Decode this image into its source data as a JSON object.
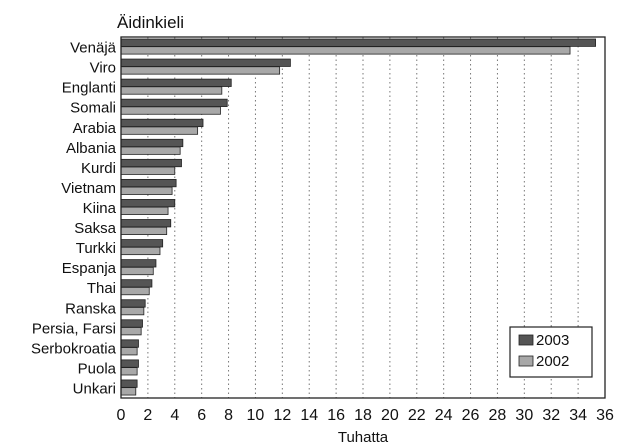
{
  "chart_data": {
    "type": "bar",
    "orientation": "horizontal",
    "title": "Äidinkieli",
    "xlabel": "Tuhatta",
    "ylabel": "",
    "xlim": [
      0,
      36
    ],
    "xticks": [
      "0",
      "2",
      "4",
      "6",
      "8",
      "10",
      "12",
      "14",
      "16",
      "18",
      "20",
      "22",
      "24",
      "26",
      "28",
      "30",
      "32",
      "34",
      "36"
    ],
    "grid": "vertical dotted",
    "legend_position": "bottom-right",
    "categories": [
      "Venäjä",
      "Viro",
      "Englanti",
      "Somali",
      "Arabia",
      "Albania",
      "Kurdi",
      "Vietnam",
      "Kiina",
      "Saksa",
      "Turkki",
      "Espanja",
      "Thai",
      "Ranska",
      "Persia, Farsi",
      "Serbokroatia",
      "Puola",
      "Unkari"
    ],
    "series": [
      {
        "name": "2003",
        "color": "#555555",
        "values": [
          35.3,
          12.6,
          8.2,
          7.9,
          6.1,
          4.6,
          4.5,
          4.1,
          4.0,
          3.7,
          3.1,
          2.6,
          2.3,
          1.8,
          1.6,
          1.3,
          1.3,
          1.2
        ]
      },
      {
        "name": "2002",
        "color": "#a8a8a8",
        "values": [
          33.4,
          11.8,
          7.5,
          7.4,
          5.7,
          4.4,
          4.0,
          3.8,
          3.5,
          3.4,
          2.9,
          2.4,
          2.1,
          1.7,
          1.5,
          1.2,
          1.2,
          1.1
        ]
      }
    ]
  }
}
